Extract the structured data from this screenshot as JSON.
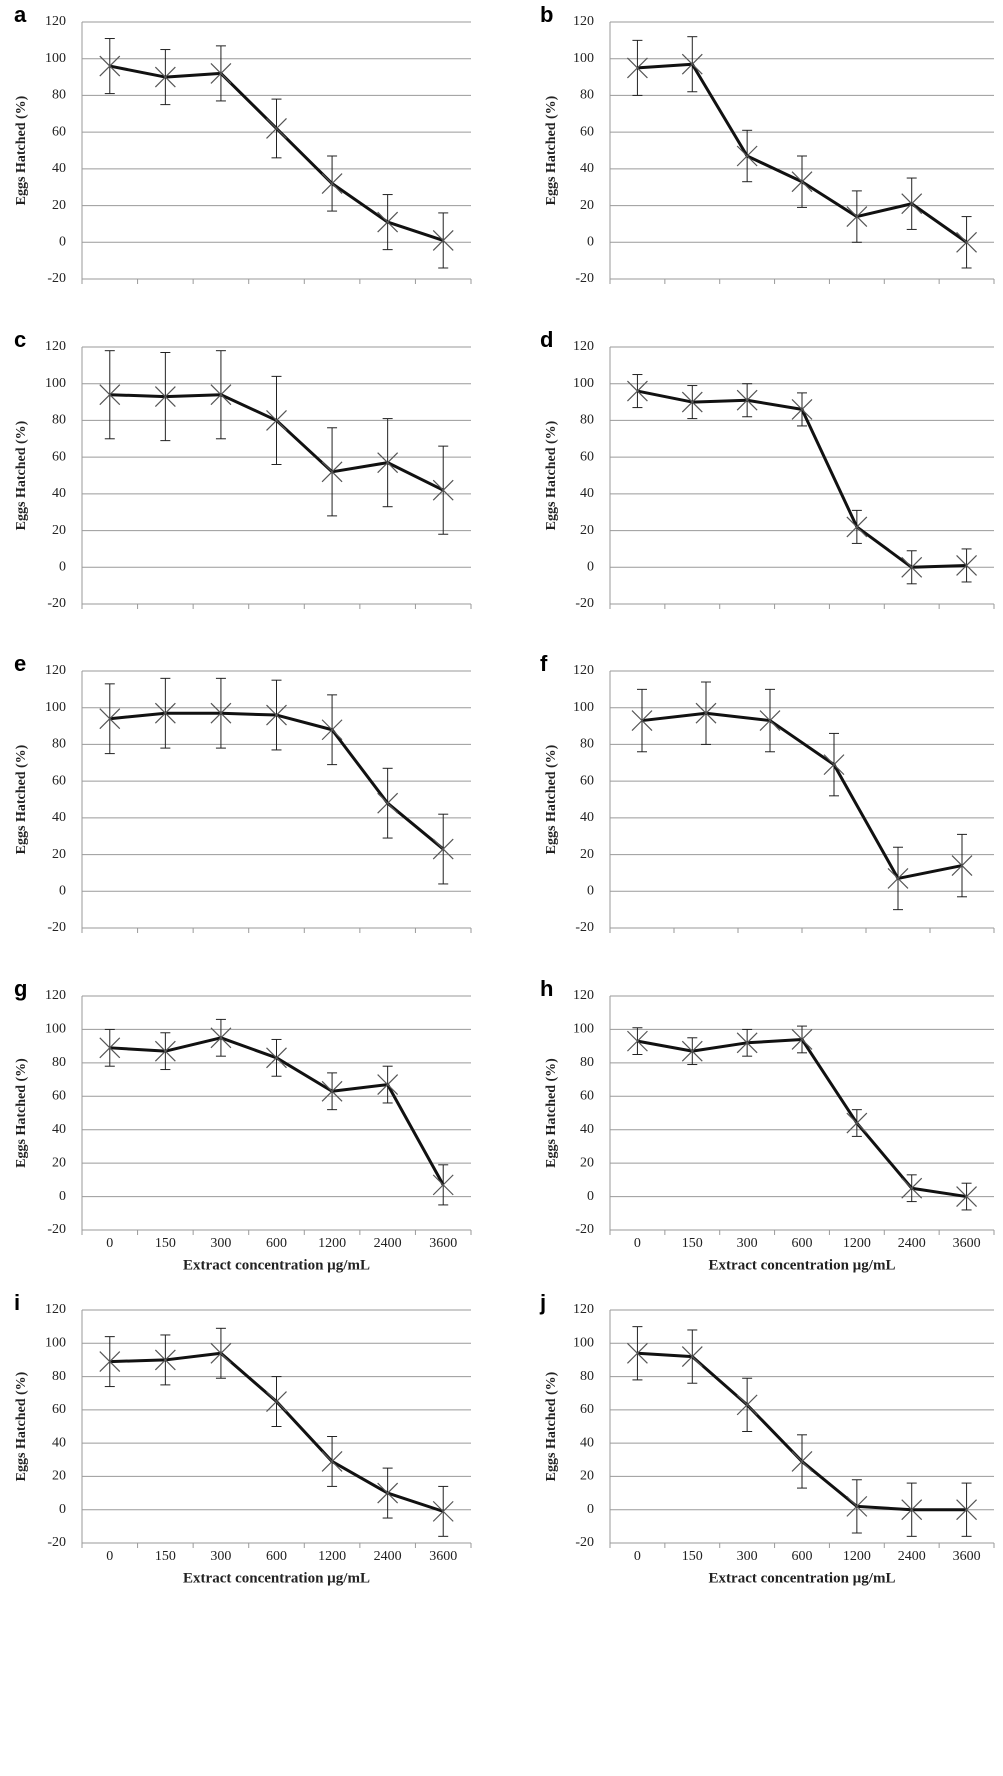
{
  "chart_data": [
    {
      "type": "line",
      "title": "a",
      "ylabel": "Eggs Hatched (%)",
      "categories": [
        null,
        null,
        null,
        null,
        null,
        null,
        null
      ],
      "values": [
        96,
        90,
        92,
        62,
        32,
        11,
        1
      ],
      "errors": [
        15,
        15,
        15,
        16,
        15,
        15,
        15
      ],
      "color": "#111111",
      "ylim": [
        -20,
        120
      ],
      "yticks": [
        -20,
        0,
        20,
        40,
        60,
        80,
        100,
        120
      ],
      "grid": true
    },
    {
      "type": "line",
      "title": "b",
      "ylabel": "Eggs Hatched (%)",
      "categories": [
        null,
        null,
        null,
        null,
        null,
        null,
        null
      ],
      "values": [
        95,
        97,
        47,
        33,
        14,
        21,
        0
      ],
      "errors": [
        15,
        15,
        14,
        14,
        14,
        14,
        14
      ],
      "color": "#111111",
      "ylim": [
        -20,
        120
      ],
      "yticks": [
        -20,
        0,
        20,
        40,
        60,
        80,
        100,
        120
      ],
      "grid": true
    },
    {
      "type": "line",
      "title": "c",
      "ylabel": "Eggs Hatched (%)",
      "categories": [
        null,
        null,
        null,
        null,
        null,
        null,
        null
      ],
      "values": [
        94,
        93,
        94,
        80,
        52,
        57,
        42
      ],
      "errors": [
        24,
        24,
        24,
        24,
        24,
        24,
        24
      ],
      "color": "#111111",
      "ylim": [
        -20,
        120
      ],
      "yticks": [
        -20,
        0,
        20,
        40,
        60,
        80,
        100,
        120
      ],
      "grid": true
    },
    {
      "type": "line",
      "title": "d",
      "ylabel": "Eggs Hatched (%)",
      "categories": [
        null,
        null,
        null,
        null,
        null,
        null,
        null
      ],
      "values": [
        96,
        90,
        91,
        86,
        22,
        0,
        1
      ],
      "errors": [
        9,
        9,
        9,
        9,
        9,
        9,
        9
      ],
      "color": "#111111",
      "ylim": [
        -20,
        120
      ],
      "yticks": [
        -20,
        0,
        20,
        40,
        60,
        80,
        100,
        120
      ],
      "grid": true
    },
    {
      "type": "line",
      "title": "e",
      "ylabel": "Eggs Hatched (%)",
      "categories": [
        null,
        null,
        null,
        null,
        null,
        null,
        null
      ],
      "values": [
        94,
        97,
        97,
        96,
        88,
        48,
        23
      ],
      "errors": [
        19,
        19,
        19,
        19,
        19,
        19,
        19
      ],
      "color": "#111111",
      "ylim": [
        -20,
        120
      ],
      "yticks": [
        -20,
        0,
        20,
        40,
        60,
        80,
        100,
        120
      ],
      "grid": true
    },
    {
      "type": "line",
      "title": "f",
      "ylabel": "Eggs Hatched (%)",
      "categories": [
        null,
        null,
        null,
        null,
        null,
        null
      ],
      "values": [
        93,
        97,
        93,
        69,
        7,
        14
      ],
      "errors": [
        17,
        17,
        17,
        17,
        17,
        17
      ],
      "color": "#111111",
      "ylim": [
        -20,
        120
      ],
      "yticks": [
        -20,
        0,
        20,
        40,
        60,
        80,
        100,
        120
      ],
      "grid": true
    },
    {
      "type": "line",
      "title": "g",
      "ylabel": "Eggs Hatched (%)",
      "xlabel": "Extract concentration µg/mL",
      "categories": [
        "0",
        "150",
        "300",
        "600",
        "1200",
        "2400",
        "3600"
      ],
      "values": [
        89,
        87,
        95,
        83,
        63,
        67,
        7
      ],
      "errors": [
        11,
        11,
        11,
        11,
        11,
        11,
        12
      ],
      "color": "#111111",
      "ylim": [
        -20,
        120
      ],
      "yticks": [
        -20,
        0,
        20,
        40,
        60,
        80,
        100,
        120
      ],
      "grid": true
    },
    {
      "type": "line",
      "title": "h",
      "ylabel": "Eggs Hatched (%)",
      "xlabel": "Extract concentration µg/mL",
      "categories": [
        "0",
        "150",
        "300",
        "600",
        "1200",
        "2400",
        "3600"
      ],
      "values": [
        93,
        87,
        92,
        94,
        44,
        5,
        0
      ],
      "errors": [
        8,
        8,
        8,
        8,
        8,
        8,
        8
      ],
      "color": "#111111",
      "ylim": [
        -20,
        120
      ],
      "yticks": [
        -20,
        0,
        20,
        40,
        60,
        80,
        100,
        120
      ],
      "grid": true
    },
    {
      "type": "line",
      "title": "i",
      "ylabel": "Eggs Hatched (%)",
      "xlabel": "Extract concentration µg/mL",
      "categories": [
        "0",
        "150",
        "300",
        "600",
        "1200",
        "2400",
        "3600"
      ],
      "values": [
        89,
        90,
        94,
        65,
        29,
        10,
        -1
      ],
      "errors": [
        15,
        15,
        15,
        15,
        15,
        15,
        15
      ],
      "color": "#111111",
      "ylim": [
        -20,
        120
      ],
      "yticks": [
        -20,
        0,
        20,
        40,
        60,
        80,
        100,
        120
      ],
      "grid": true
    },
    {
      "type": "line",
      "title": "j",
      "ylabel": "Eggs Hatched (%)",
      "xlabel": "Extract concentration µg/mL",
      "categories": [
        "0",
        "150",
        "300",
        "600",
        "1200",
        "2400",
        "3600"
      ],
      "values": [
        94,
        92,
        63,
        29,
        2,
        0,
        0
      ],
      "errors": [
        16,
        16,
        16,
        16,
        16,
        16,
        16
      ],
      "color": "#111111",
      "ylim": [
        -20,
        120
      ],
      "yticks": [
        -20,
        0,
        20,
        40,
        60,
        80,
        100,
        120
      ],
      "grid": true
    }
  ]
}
